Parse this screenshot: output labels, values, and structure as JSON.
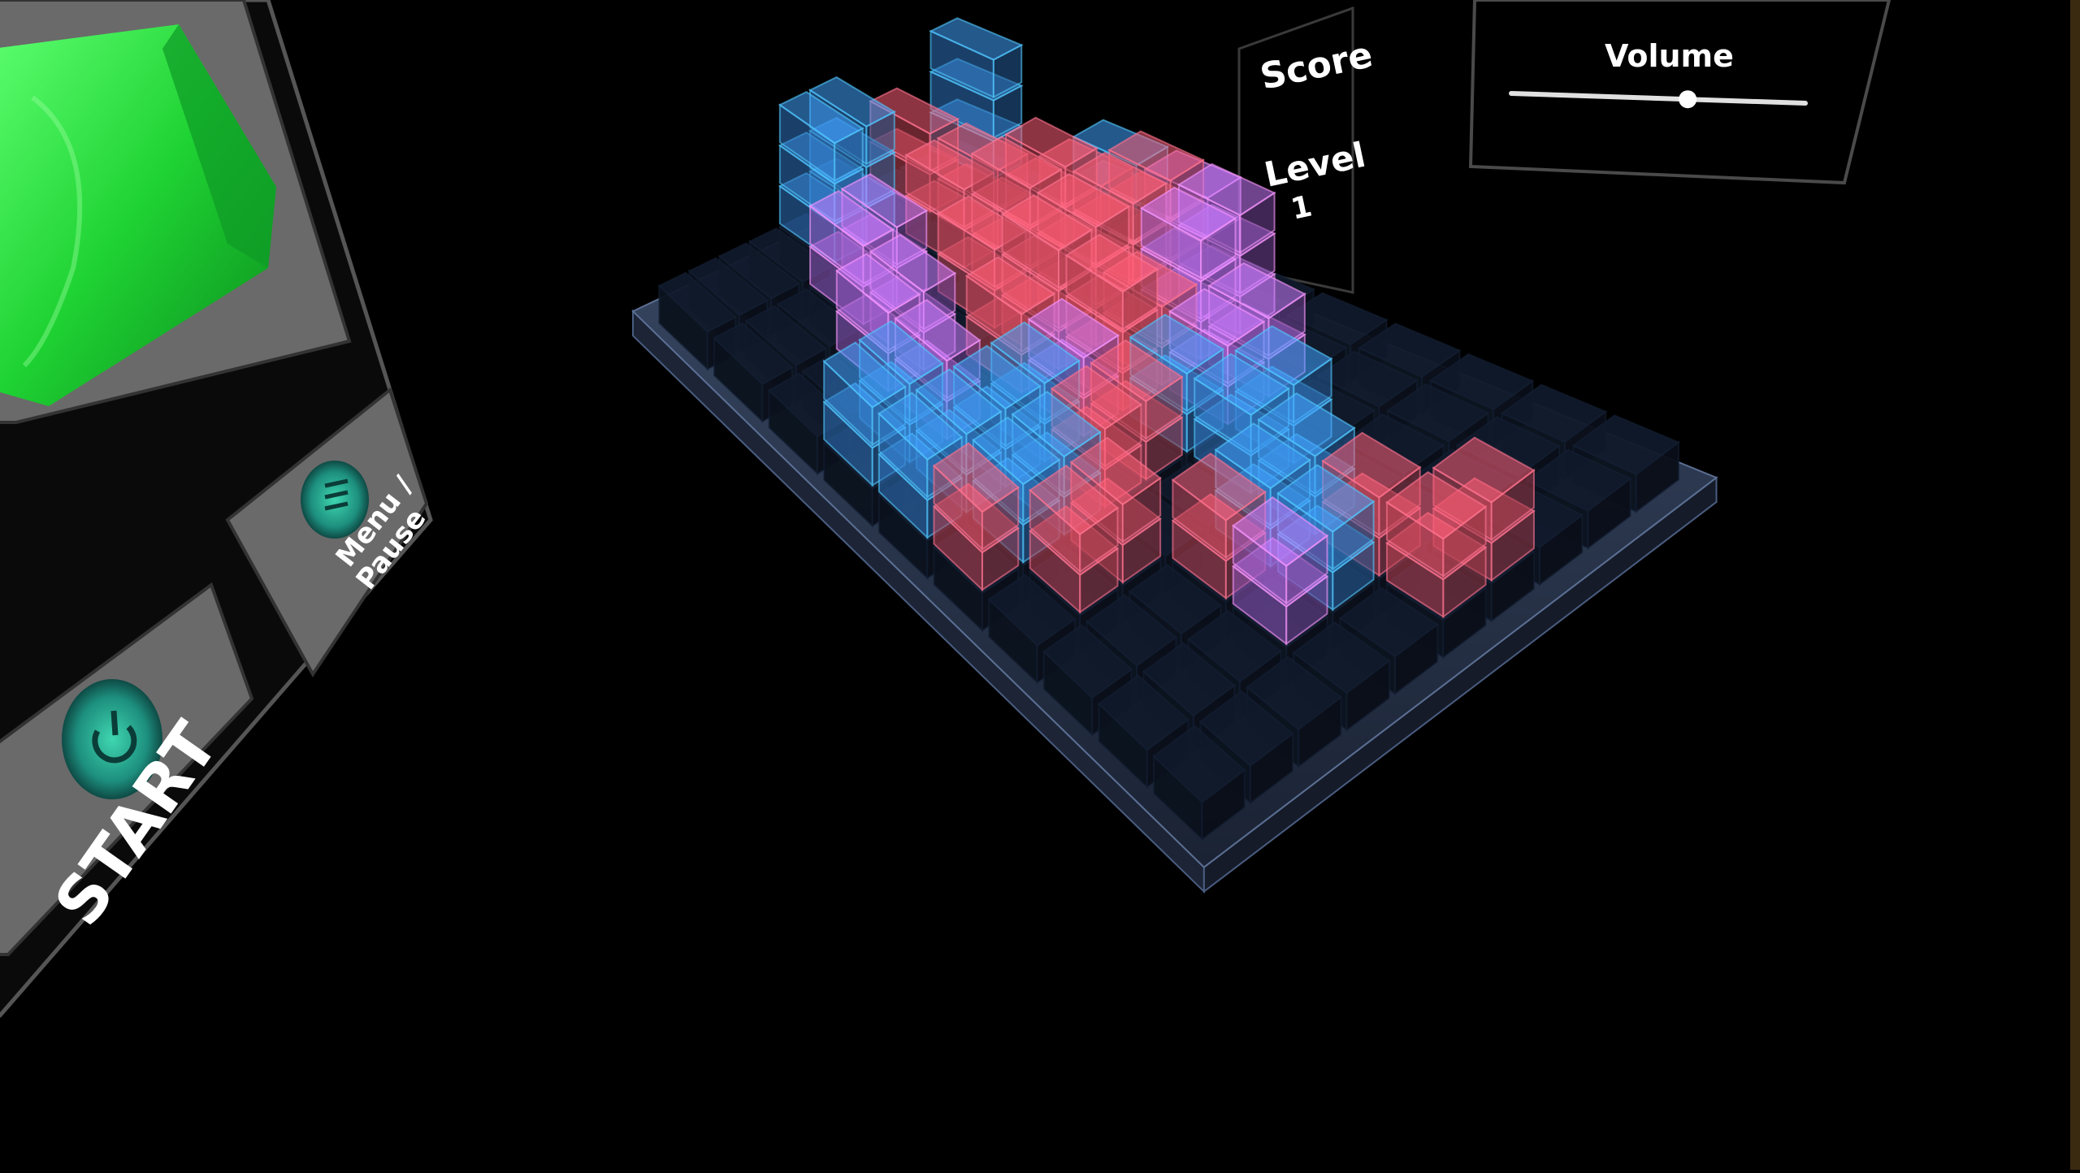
{
  "left_panel": {
    "start_label": "START",
    "menu_label_line1": "Menu /",
    "menu_label_line2": "Pause",
    "power_icon": "power-icon",
    "menu_icon": "menu-list-icon",
    "next_piece_color": "#22d33a"
  },
  "score_panel": {
    "score_label": "Score",
    "level_label": "Level",
    "level_value": "1"
  },
  "settings_panel": {
    "volume_label": "Volume",
    "volume_level": 0.6
  },
  "colors": {
    "red": "#ff5a70",
    "blue": "#3f9bff",
    "purple": "#c275ff",
    "dark": "#0f1828",
    "edge": "#6ab8ff"
  }
}
